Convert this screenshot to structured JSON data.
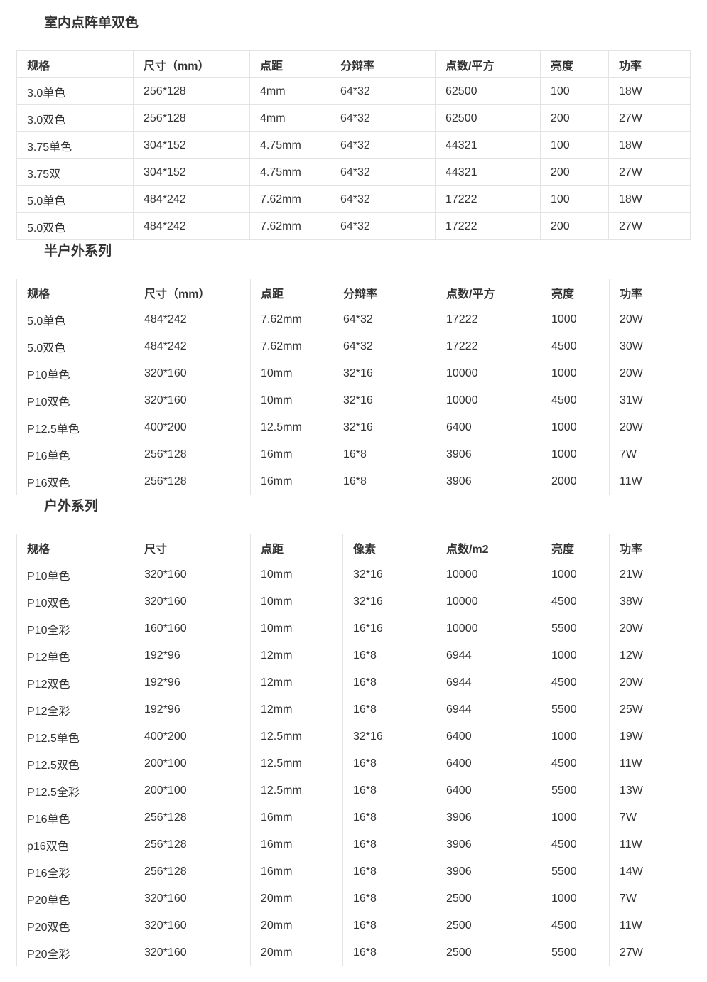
{
  "sections": [
    {
      "title": "室内点阵单双色",
      "headers": [
        "规格",
        "尺寸（mm）",
        "点距",
        "分辩率",
        "点数/平方",
        "亮度",
        "功率"
      ],
      "rows": [
        [
          "3.0单色",
          "256*128",
          "4mm",
          "64*32",
          "62500",
          "100",
          "18W"
        ],
        [
          "3.0双色",
          "256*128",
          "4mm",
          "64*32",
          "62500",
          "200",
          "27W"
        ],
        [
          "3.75单色",
          "304*152",
          "4.75mm",
          "64*32",
          "44321",
          "100",
          "18W"
        ],
        [
          "3.75双",
          "304*152",
          "4.75mm",
          "64*32",
          "44321",
          "200",
          "27W"
        ],
        [
          "5.0单色",
          "484*242",
          "7.62mm",
          "64*32",
          "17222",
          "100",
          "18W"
        ],
        [
          "5.0双色",
          "484*242",
          "7.62mm",
          "64*32",
          "17222",
          "200",
          "27W"
        ]
      ]
    },
    {
      "title": "半户外系列",
      "headers": [
        "规格",
        "尺寸（mm）",
        "点距",
        "分辩率",
        "点数/平方",
        "亮度",
        "功率"
      ],
      "rows": [
        [
          "5.0单色",
          "484*242",
          "7.62mm",
          "64*32",
          "17222",
          "1000",
          "20W"
        ],
        [
          "5.0双色",
          "484*242",
          "7.62mm",
          "64*32",
          "17222",
          "4500",
          "30W"
        ],
        [
          "P10单色",
          "320*160",
          "10mm",
          "32*16",
          "10000",
          "1000",
          "20W"
        ],
        [
          "P10双色",
          "320*160",
          "10mm",
          "32*16",
          "10000",
          "4500",
          "31W"
        ],
        [
          "P12.5单色",
          "400*200",
          "12.5mm",
          "32*16",
          "6400",
          "1000",
          "20W"
        ],
        [
          "P16单色",
          "256*128",
          "16mm",
          "16*8",
          "3906",
          "1000",
          "7W"
        ],
        [
          "P16双色",
          "256*128",
          "16mm",
          "16*8",
          "3906",
          "2000",
          "11W"
        ]
      ]
    },
    {
      "title": "户外系列",
      "headers": [
        "规格",
        "尺寸",
        "点距",
        "像素",
        "点数/m2",
        "亮度",
        "功率"
      ],
      "rows": [
        [
          "P10单色",
          "320*160",
          "10mm",
          "32*16",
          "10000",
          "1000",
          "21W"
        ],
        [
          "P10双色",
          "320*160",
          "10mm",
          "32*16",
          "10000",
          "4500",
          "38W"
        ],
        [
          "P10全彩",
          "160*160",
          "10mm",
          "16*16",
          "10000",
          "5500",
          "20W"
        ],
        [
          "P12单色",
          "192*96",
          "12mm",
          "16*8",
          "6944",
          "1000",
          "12W"
        ],
        [
          "P12双色",
          "192*96",
          "12mm",
          "16*8",
          "6944",
          "4500",
          "20W"
        ],
        [
          "P12全彩",
          "192*96",
          "12mm",
          "16*8",
          "6944",
          "5500",
          "25W"
        ],
        [
          "P12.5单色",
          "400*200",
          "12.5mm",
          "32*16",
          "6400",
          "1000",
          "19W"
        ],
        [
          "P12.5双色",
          "200*100",
          "12.5mm",
          "16*8",
          "6400",
          "4500",
          "11W"
        ],
        [
          "P12.5全彩",
          "200*100",
          "12.5mm",
          "16*8",
          "6400",
          "5500",
          "13W"
        ],
        [
          "P16单色",
          "256*128",
          "16mm",
          "16*8",
          "3906",
          "1000",
          "7W"
        ],
        [
          "p16双色",
          "256*128",
          "16mm",
          "16*8",
          "3906",
          "4500",
          "11W"
        ],
        [
          "P16全彩",
          "256*128",
          "16mm",
          "16*8",
          "3906",
          "5500",
          "14W"
        ],
        [
          "P20单色",
          "320*160",
          "20mm",
          "16*8",
          "2500",
          "1000",
          "7W"
        ],
        [
          "P20双色",
          "320*160",
          "20mm",
          "16*8",
          "2500",
          "4500",
          "11W"
        ],
        [
          "P20全彩",
          "320*160",
          "20mm",
          "16*8",
          "2500",
          "5500",
          "27W"
        ]
      ]
    }
  ]
}
